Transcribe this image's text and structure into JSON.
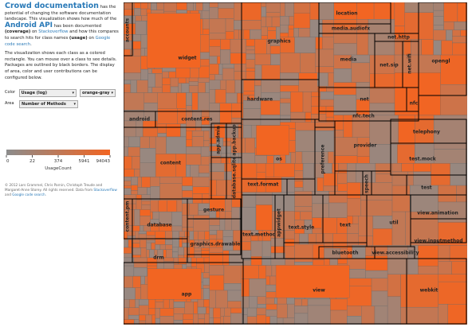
{
  "sidebar": {
    "title": "Crowd documentation",
    "intro": [
      "has the potential of changing the software documentation landscape. This visualization shows how much of the",
      "Android API",
      "has been documented",
      "(coverage)",
      "on",
      "Stackoverflow",
      "and how this compares to search hits for class names",
      "(usage)",
      "on",
      "Google code search",
      "."
    ],
    "description": "The visualization shows each class as a colored rectangle. You can mouse over a class to see details. Packages are outlined by black borders. The display of area, color and user contributions can be configured below.",
    "controls": {
      "color_label": "Color",
      "color_value": "Usage (log)",
      "scheme_value": "orange-gray",
      "area_label": "Area",
      "area_value": "Number of Methods"
    },
    "legend": {
      "ticks": [
        0,
        22,
        374,
        5941,
        94043
      ],
      "title": "UsageCount"
    },
    "footer": [
      "© 2012 Lars Grammel, Chris Parnin, Christoph Treude and Margaret-Anne Storey. All rights reserved. Data from",
      "Stackoverflow",
      "and",
      "Google code search",
      "."
    ]
  },
  "treemap": {
    "packages": [
      "widget",
      "graphics",
      "hardware",
      "location",
      "media.audiofx",
      "media",
      "net.http",
      "net.sip",
      "net.wifi",
      "opengl",
      "net",
      "nfc",
      "nfc.tech",
      "accounts",
      "android",
      "content.res",
      "content",
      "app.admin",
      "app.backup",
      "database.sqlite",
      "os",
      "preference",
      "provider",
      "speech",
      "telephony",
      "test.mock",
      "test",
      "content.pm",
      "database",
      "gesture",
      "graphics.drawable",
      "drm",
      "text.format",
      "text.method",
      "appwidget",
      "text.style",
      "text",
      "util",
      "view.animation",
      "view.inputmethod",
      "bluetooth",
      "view.accessibility",
      "app",
      "view",
      "webkit"
    ]
  }
}
